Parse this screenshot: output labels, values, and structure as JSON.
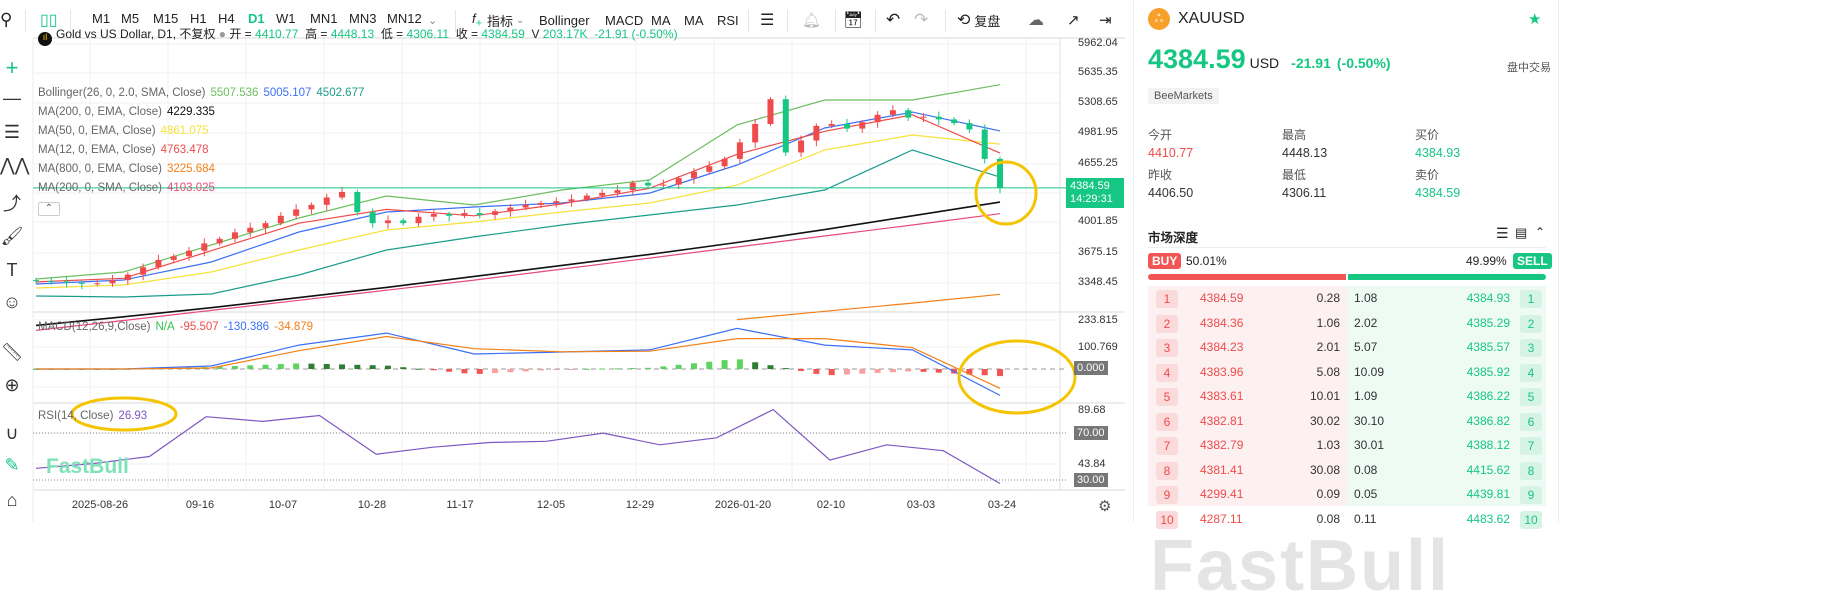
{
  "toolbar": {
    "timeframes": [
      "M1",
      "M5",
      "M15",
      "H1",
      "H4",
      "D1",
      "W1",
      "MN1",
      "MN3",
      "MN12"
    ],
    "active_timeframe": "D1",
    "indicators_label": "指标",
    "indicator_shortcuts": [
      "Bollinger",
      "MACD",
      "MA",
      "MA",
      "RSI"
    ],
    "replay_label": "复盘"
  },
  "legend": {
    "title": "Gold vs US Dollar, D1, 不复权",
    "open_label": "开 =",
    "open": "4410.77",
    "high_label": "高 =",
    "high": "4448.13",
    "low_label": "低 =",
    "low": "4306.11",
    "close_label": "收 =",
    "close": "4384.59",
    "vol_label": "V",
    "vol": "203.17K",
    "change": "-21.91 (-0.50%)",
    "indicators": [
      {
        "name": "Bollinger(26, 0, 2.0, SMA, Close)",
        "values": [
          {
            "v": "5507.536",
            "c": "#6cbf5f"
          },
          {
            "v": "5005.107",
            "c": "#3b6ff5"
          },
          {
            "v": "4502.677",
            "c": "#1a9c8c"
          }
        ]
      },
      {
        "name": "MA(200, 0, EMA, Close)",
        "values": [
          {
            "v": "4229.335",
            "c": "#111111"
          }
        ]
      },
      {
        "name": "MA(50, 0, EMA, Close)",
        "values": [
          {
            "v": "4861.075",
            "c": "#f5e23a"
          }
        ]
      },
      {
        "name": "MA(12, 0, EMA, Close)",
        "values": [
          {
            "v": "4763.478",
            "c": "#f04b4b"
          }
        ]
      },
      {
        "name": "MA(800, 0, EMA, Close)",
        "values": [
          {
            "v": "3225.684",
            "c": "#f57f17"
          }
        ]
      },
      {
        "name": "MA(200, 0, SMA, Close)",
        "values": [
          {
            "v": "4103.025",
            "c": "#e84a7a"
          }
        ]
      }
    ],
    "macd": {
      "name": "MACD(12,26,9,Close)",
      "values": [
        {
          "v": "N/A",
          "c": "#35c04a"
        },
        {
          "v": "-95.507",
          "c": "#f04b4b"
        },
        {
          "v": "-130.386",
          "c": "#3b6ff5"
        },
        {
          "v": "-34.879",
          "c": "#f57f17"
        }
      ]
    },
    "rsi": {
      "name": "RSI(14, Close)",
      "value": "26.93"
    }
  },
  "price_axis": [
    "5962.04",
    "5635.35",
    "5308.65",
    "4981.95",
    "4655.25",
    "4001.85",
    "3675.15",
    "3348.45"
  ],
  "current_price_tag": {
    "price": "4384.59",
    "countdown": "14:29:31"
  },
  "macd_axis": [
    "233.815",
    "100.769",
    "0.000"
  ],
  "rsi_axis": [
    "89.68",
    "70.00",
    "43.84",
    "30.00"
  ],
  "dates": [
    "2025-08-26",
    "09-16",
    "10-07",
    "10-28",
    "11-17",
    "12-05",
    "12-29",
    "2026-01-20",
    "02-10",
    "03-03",
    "03-24"
  ],
  "watermark": "FastBull",
  "colors": {
    "up": "#f04b4b",
    "down": "#16c784",
    "accent": "#16c784",
    "annotation": "#f5c400"
  },
  "chart_data": {
    "type": "candlestick",
    "price_range": [
      3050,
      5962.04
    ],
    "closes": [
      3370,
      3365,
      3350,
      3340,
      3345,
      3380,
      3440,
      3520,
      3600,
      3640,
      3700,
      3780,
      3830,
      3900,
      3950,
      4000,
      4080,
      4150,
      4200,
      4280,
      4340,
      4120,
      4000,
      4030,
      4000,
      4070,
      4100,
      4080,
      4110,
      4090,
      4130,
      4170,
      4200,
      4220,
      4240,
      4260,
      4300,
      4330,
      4360,
      4440,
      4410,
      4420,
      4490,
      4560,
      4620,
      4700,
      4880,
      5080,
      5350,
      4770,
      4900,
      5060,
      5080,
      5030,
      5100,
      5180,
      5230,
      5150,
      5160,
      5130,
      5090,
      5020,
      4700,
      4385
    ],
    "overlays": {
      "bb_upper": [
        3392,
        3468,
        3762,
        4056,
        4296,
        4198,
        4361,
        4470,
        5070,
        5341,
        5341,
        5508
      ],
      "bb_middle": [
        3338,
        3381,
        3577,
        3904,
        4122,
        4176,
        4220,
        4328,
        4633,
        5036,
        5210,
        5005
      ],
      "bb_lower": [
        3207,
        3196,
        3229,
        3436,
        3708,
        3850,
        3980,
        4089,
        4198,
        4361,
        4797,
        4502
      ],
      "ema200": [
        2887,
        2980,
        3080,
        3190,
        3300,
        3420,
        3540,
        3660,
        3790,
        3930,
        4080,
        4229
      ],
      "sma200": [
        2832,
        2940,
        3050,
        3160,
        3270,
        3380,
        3500,
        3620,
        3740,
        3860,
        3980,
        4103
      ],
      "ema50": [
        3294,
        3327,
        3468,
        3708,
        3926,
        4013,
        4122,
        4220,
        4415,
        4797,
        4960,
        4861
      ],
      "ema12": [
        3360,
        3400,
        3700,
        4000,
        4150,
        4080,
        4210,
        4380,
        4750,
        5000,
        5180,
        4763
      ],
      "ema800": [
        null,
        null,
        null,
        null,
        null,
        null,
        null,
        null,
        2950,
        3040,
        3130,
        3225
      ]
    },
    "macd_line": [
      0,
      0,
      15,
      118,
      177,
      74,
      84,
      94,
      200,
      118,
      94,
      -130
    ],
    "macd_signal": [
      0,
      0,
      5,
      90,
      160,
      100,
      85,
      88,
      150,
      150,
      105,
      -95
    ],
    "rsi": [
      40,
      44,
      50,
      84,
      80,
      85,
      52,
      58,
      62,
      63,
      70,
      60,
      66,
      90,
      47,
      60,
      55,
      27
    ]
  },
  "quote": {
    "symbol": "XAUUSD",
    "price": "4384.59",
    "currency": "USD",
    "change": "-21.91",
    "change_pct": "(-0.50%)",
    "session": "盘中交易",
    "broker": "BeeMarkets",
    "stats": [
      {
        "label": "今开",
        "value": "4410.77",
        "red": true
      },
      {
        "label": "最高",
        "value": "4448.13"
      },
      {
        "label": "买价",
        "value": "4384.93",
        "green": true
      },
      {
        "label": "昨收",
        "value": "4406.50"
      },
      {
        "label": "最低",
        "value": "4306.11"
      },
      {
        "label": "卖价",
        "value": "4384.59",
        "green": true
      }
    ]
  },
  "depth": {
    "title": "市场深度",
    "buy_label": "BUY",
    "buy_pct": "50.01%",
    "sell_label": "SELL",
    "sell_pct": "49.99%",
    "buy_fraction": 0.5001,
    "rows": [
      {
        "n": "1",
        "bid": "4384.59",
        "bq": "0.28",
        "aq": "1.08",
        "ask": "4384.93"
      },
      {
        "n": "2",
        "bid": "4384.36",
        "bq": "1.06",
        "aq": "2.02",
        "ask": "4385.29"
      },
      {
        "n": "3",
        "bid": "4384.23",
        "bq": "2.01",
        "aq": "5.07",
        "ask": "4385.57"
      },
      {
        "n": "4",
        "bid": "4383.96",
        "bq": "5.08",
        "aq": "10.09",
        "ask": "4385.92"
      },
      {
        "n": "5",
        "bid": "4383.61",
        "bq": "10.01",
        "aq": "1.09",
        "ask": "4386.22"
      },
      {
        "n": "6",
        "bid": "4382.81",
        "bq": "30.02",
        "aq": "30.10",
        "ask": "4386.82"
      },
      {
        "n": "7",
        "bid": "4382.79",
        "bq": "1.03",
        "aq": "30.01",
        "ask": "4388.12"
      },
      {
        "n": "8",
        "bid": "4381.41",
        "bq": "30.08",
        "aq": "0.08",
        "ask": "4415.62"
      },
      {
        "n": "9",
        "bid": "4299.41",
        "bq": "0.09",
        "aq": "0.05",
        "ask": "4439.81"
      },
      {
        "n": "10",
        "bid": "4287.11",
        "bq": "0.08",
        "aq": "0.11",
        "ask": "4483.62"
      }
    ]
  }
}
